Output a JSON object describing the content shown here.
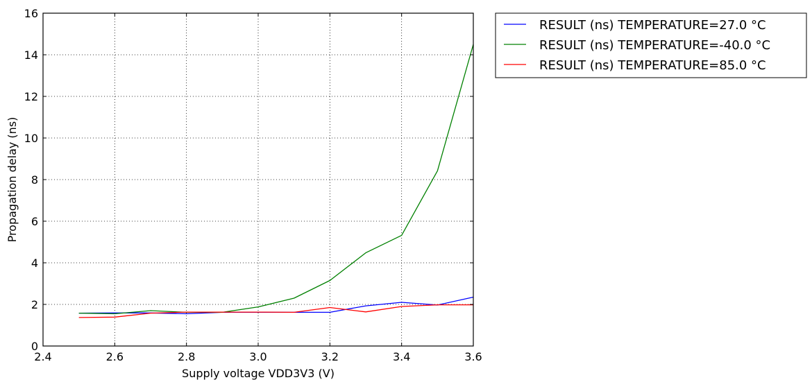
{
  "chart_data": {
    "type": "line",
    "title": "",
    "xlabel": "Supply voltage VDD3V3 (V)",
    "ylabel": "Propagation delay (ns)",
    "xlim": [
      2.4,
      3.6
    ],
    "ylim": [
      0,
      16
    ],
    "xticks": [
      2.4,
      2.6,
      2.8,
      3.0,
      3.2,
      3.4,
      3.6
    ],
    "xtick_labels": [
      "2.4",
      "2.6",
      "2.8",
      "3.0",
      "3.2",
      "3.4",
      "3.6"
    ],
    "yticks": [
      0,
      2,
      4,
      6,
      8,
      10,
      12,
      14,
      16
    ],
    "ytick_labels": [
      "0",
      "2",
      "4",
      "6",
      "8",
      "10",
      "12",
      "14",
      "16"
    ],
    "grid": true,
    "legend_position": "outside-top-right",
    "x": [
      2.5,
      2.6,
      2.7,
      2.8,
      2.9,
      3.0,
      3.1,
      3.2,
      3.3,
      3.4,
      3.5,
      3.6
    ],
    "series": [
      {
        "name": "RESULT (ns) TEMPERATURE=27.0 °C",
        "color": "#0000ff",
        "values": [
          1.58,
          1.59,
          1.59,
          1.55,
          1.62,
          1.62,
          1.62,
          1.62,
          1.93,
          2.1,
          1.97,
          2.35
        ]
      },
      {
        "name": "RESULT (ns) TEMPERATURE=-40.0 °C",
        "color": "#008000",
        "values": [
          1.58,
          1.55,
          1.7,
          1.62,
          1.62,
          1.88,
          2.3,
          3.15,
          4.48,
          5.32,
          8.42,
          14.5
        ]
      },
      {
        "name": "RESULT (ns) TEMPERATURE=85.0 °C",
        "color": "#ff0000",
        "values": [
          1.37,
          1.39,
          1.58,
          1.63,
          1.63,
          1.63,
          1.62,
          1.85,
          1.64,
          1.9,
          1.98,
          1.98
        ]
      }
    ]
  }
}
